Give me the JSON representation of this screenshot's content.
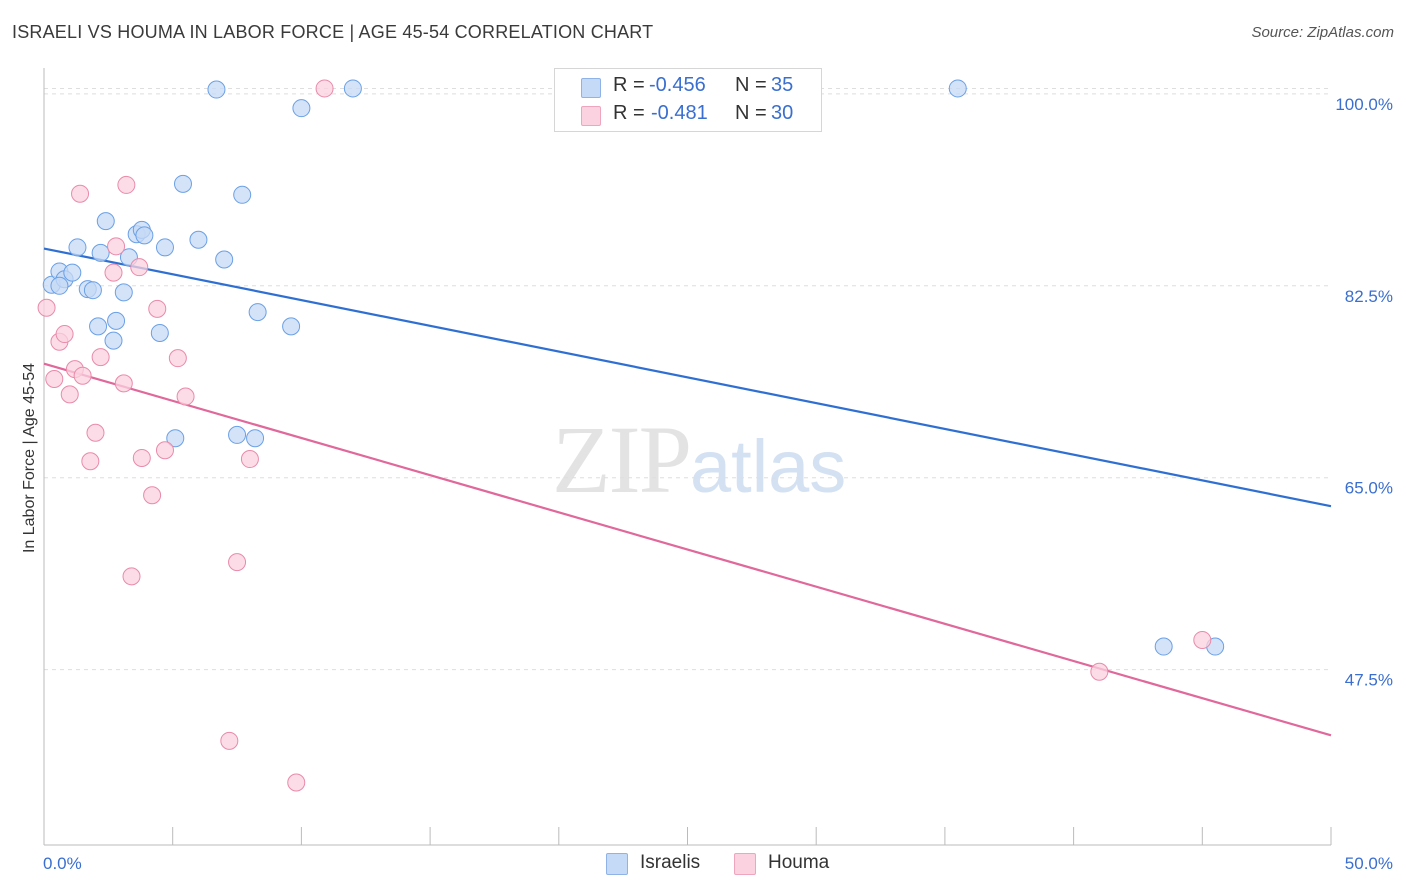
{
  "header": {
    "title": "ISRAELI VS HOUMA IN LABOR FORCE | AGE 45-54 CORRELATION CHART",
    "source": "Source: ZipAtlas.com"
  },
  "watermark": {
    "zip": "ZIP",
    "atlas": "atlas"
  },
  "stats": {
    "israelis": {
      "r_label": "R =",
      "r": "-0.456",
      "n_label": "N =",
      "n": "35",
      "color": "#9cbff0"
    },
    "houma": {
      "r_label": "R =",
      "r": "-0.481",
      "n_label": "N =",
      "n": "30",
      "color": "#f5b4c8"
    }
  },
  "legend": {
    "israelis": "Israelis",
    "houma": "Houma"
  },
  "chart_data": {
    "type": "scatter",
    "title": "ISRAELI VS HOUMA IN LABOR FORCE | AGE 45-54 CORRELATION CHART",
    "xlabel": "",
    "ylabel": "In Labor Force | Age 45-54",
    "xlim": [
      0,
      50
    ],
    "ylim": [
      31.5,
      102
    ],
    "x_tick_labels": [
      "0.0%",
      "50.0%"
    ],
    "y_ticks": [
      47.5,
      65.0,
      82.5,
      100.0
    ],
    "y_tick_labels": [
      "47.5%",
      "65.0%",
      "82.5%",
      "100.0%"
    ],
    "grid": true,
    "series": [
      {
        "name": "Israelis",
        "color": "#6aa0e6",
        "fill": "#c5daf6",
        "points": [
          [
            0.3,
            82.6
          ],
          [
            0.6,
            83.8
          ],
          [
            0.8,
            83.1
          ],
          [
            1.1,
            83.7
          ],
          [
            1.3,
            86.0
          ],
          [
            1.7,
            82.2
          ],
          [
            1.9,
            82.1
          ],
          [
            2.1,
            78.8
          ],
          [
            2.2,
            85.5
          ],
          [
            2.4,
            88.4
          ],
          [
            2.7,
            77.5
          ],
          [
            2.8,
            79.3
          ],
          [
            3.1,
            81.9
          ],
          [
            3.3,
            85.1
          ],
          [
            3.6,
            87.2
          ],
          [
            3.8,
            87.6
          ],
          [
            3.9,
            87.1
          ],
          [
            4.5,
            78.2
          ],
          [
            4.7,
            86.0
          ],
          [
            5.1,
            68.6
          ],
          [
            5.4,
            91.8
          ],
          [
            6.0,
            86.7
          ],
          [
            6.7,
            100.4
          ],
          [
            7.0,
            84.9
          ],
          [
            7.5,
            68.9
          ],
          [
            7.7,
            90.8
          ],
          [
            8.2,
            68.6
          ],
          [
            8.3,
            80.1
          ],
          [
            9.6,
            78.8
          ],
          [
            10.0,
            98.7
          ],
          [
            12.0,
            100.5
          ],
          [
            35.5,
            100.5
          ],
          [
            43.5,
            49.6
          ],
          [
            45.5,
            49.6
          ],
          [
            0.6,
            82.5
          ]
        ]
      },
      {
        "name": "Houma",
        "color": "#e98aa9",
        "fill": "#fbd2df",
        "points": [
          [
            0.1,
            80.5
          ],
          [
            0.4,
            74.0
          ],
          [
            0.6,
            77.4
          ],
          [
            0.8,
            78.1
          ],
          [
            1.0,
            72.6
          ],
          [
            1.2,
            74.9
          ],
          [
            1.4,
            90.9
          ],
          [
            1.5,
            74.3
          ],
          [
            1.8,
            66.5
          ],
          [
            2.0,
            69.1
          ],
          [
            2.2,
            76.0
          ],
          [
            2.7,
            83.7
          ],
          [
            2.8,
            86.1
          ],
          [
            3.1,
            73.6
          ],
          [
            3.2,
            91.7
          ],
          [
            3.4,
            56.0
          ],
          [
            3.7,
            84.2
          ],
          [
            3.8,
            66.8
          ],
          [
            4.2,
            63.4
          ],
          [
            4.4,
            80.4
          ],
          [
            4.7,
            67.5
          ],
          [
            5.2,
            75.9
          ],
          [
            5.5,
            72.4
          ],
          [
            7.2,
            41.0
          ],
          [
            7.5,
            57.3
          ],
          [
            8.0,
            66.7
          ],
          [
            9.8,
            37.2
          ],
          [
            10.9,
            100.5
          ],
          [
            41.0,
            47.3
          ],
          [
            45.0,
            50.2
          ]
        ]
      }
    ],
    "trendlines": [
      {
        "series": "Israelis",
        "x": [
          0,
          50
        ],
        "y": [
          85.9,
          62.4
        ]
      },
      {
        "series": "Houma",
        "x": [
          0,
          50
        ],
        "y": [
          75.4,
          41.5
        ]
      }
    ]
  }
}
